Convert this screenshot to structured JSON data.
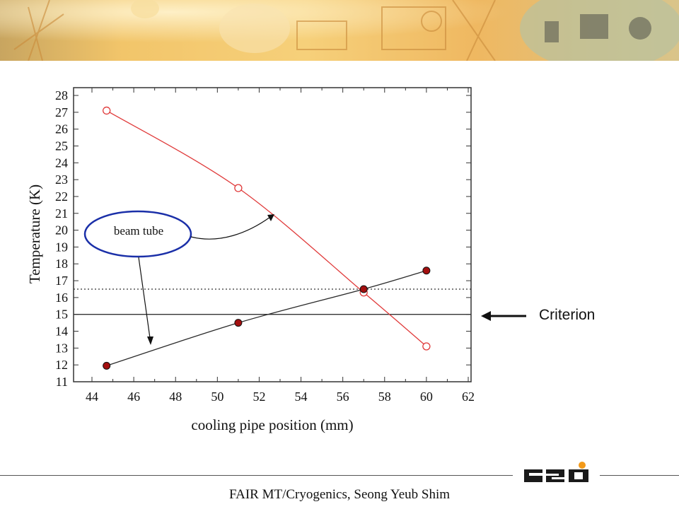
{
  "criterion_label": "Criterion",
  "annotation_label": "beam tube",
  "footer_text": "FAIR MT/Cryogenics,   Seong Yeub Shim",
  "logo_text": "GSI",
  "colors": {
    "series_red": "#e03a3a",
    "series_dark": "#2a2a2a",
    "marker_fill": "#a30f0f",
    "banner": "#f0b860"
  },
  "chart_data": {
    "type": "line",
    "title": "",
    "xlabel": "cooling pipe position (mm)",
    "ylabel": "Temperature (K)",
    "xlim": [
      43,
      62
    ],
    "ylim": [
      11,
      28.5
    ],
    "xticks": [
      44,
      46,
      48,
      50,
      52,
      54,
      56,
      58,
      60,
      62
    ],
    "yticks": [
      11,
      12,
      13,
      14,
      15,
      16,
      17,
      18,
      19,
      20,
      21,
      22,
      23,
      24,
      25,
      26,
      27,
      28
    ],
    "series": [
      {
        "x": [
          44.7,
          51,
          57,
          60
        ],
        "y": [
          27.1,
          22.5,
          16.3,
          13.1
        ],
        "marker": "open-circle",
        "color": "#e03a3a"
      },
      {
        "x": [
          44.7,
          51,
          57,
          60
        ],
        "y": [
          11.95,
          14.5,
          16.5,
          17.6
        ],
        "marker": "filled-circle",
        "color": "#2a2a2a"
      }
    ],
    "reference_lines": [
      {
        "y": 15,
        "style": "solid"
      },
      {
        "y": 16.5,
        "style": "dotted"
      }
    ],
    "grid": false,
    "legend": "none"
  }
}
